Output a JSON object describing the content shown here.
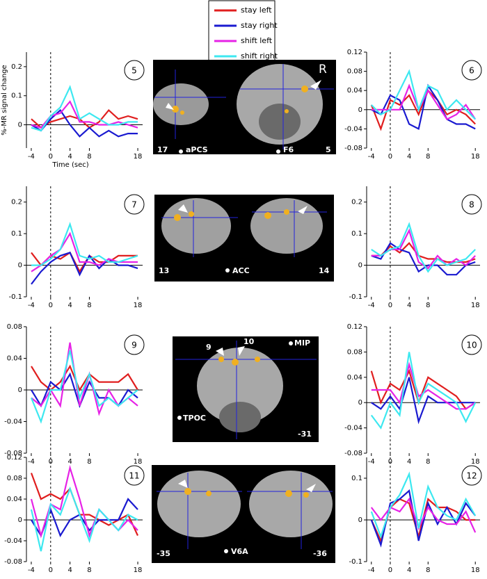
{
  "chart_data": [
    {
      "type": "line",
      "label": "5",
      "y_label": "%-MR signal change",
      "x_label": "Time (sec)",
      "x": [
        -4,
        -2,
        0,
        2,
        4,
        6,
        8,
        10,
        12,
        14,
        16,
        18
      ],
      "xlim": [
        -5,
        19
      ],
      "xticks": [
        -4,
        0,
        4,
        8,
        18
      ],
      "ylim": [
        -0.08,
        0.25
      ],
      "yticks": [
        0,
        0.1,
        0.2
      ],
      "hline": 0,
      "vline": 0,
      "series": [
        {
          "name": "stay left",
          "color": "#e01e1e",
          "values": [
            0.02,
            -0.01,
            0.01,
            0.02,
            0.03,
            0.02,
            -0.01,
            0.01,
            0.05,
            0.02,
            0.03,
            0.02
          ]
        },
        {
          "name": "stay right",
          "color": "#1a1ad0",
          "values": [
            0.0,
            -0.02,
            0.02,
            0.05,
            0.0,
            -0.04,
            -0.01,
            -0.04,
            -0.02,
            -0.04,
            -0.03,
            -0.03
          ]
        },
        {
          "name": "shift left",
          "color": "#e622e6",
          "values": [
            0.0,
            -0.01,
            0.03,
            0.04,
            0.08,
            0.01,
            0.01,
            0.0,
            0.0,
            0.01,
            0.0,
            -0.01
          ]
        },
        {
          "name": "shift right",
          "color": "#3de8f0",
          "values": [
            -0.01,
            -0.02,
            0.03,
            0.06,
            0.13,
            0.02,
            0.04,
            0.02,
            0.0,
            0.0,
            0.01,
            0.01
          ]
        }
      ]
    },
    {
      "type": "line",
      "label": "6",
      "x": [
        -4,
        -2,
        0,
        2,
        4,
        6,
        8,
        10,
        12,
        14,
        16,
        18
      ],
      "xlim": [
        -5,
        19
      ],
      "xticks": [
        -4,
        0,
        4,
        8,
        18
      ],
      "ylim": [
        -0.08,
        0.12
      ],
      "yticks": [
        -0.08,
        -0.04,
        0,
        0.04,
        0.08,
        0.12
      ],
      "hline": 0,
      "vline": 0,
      "series": [
        {
          "color": "#e01e1e",
          "values": [
            0.01,
            -0.04,
            0.02,
            0.01,
            0.03,
            -0.01,
            0.04,
            0.02,
            -0.01,
            0.0,
            -0.01,
            -0.03
          ]
        },
        {
          "color": "#1a1ad0",
          "values": [
            0.0,
            -0.01,
            0.03,
            0.02,
            -0.03,
            -0.04,
            0.05,
            0.02,
            -0.02,
            -0.03,
            -0.03,
            -0.04
          ]
        },
        {
          "color": "#e622e6",
          "values": [
            0.0,
            0.0,
            0.0,
            0.0,
            0.05,
            0.0,
            0.04,
            0.01,
            -0.02,
            -0.01,
            0.01,
            -0.02
          ]
        },
        {
          "color": "#3de8f0",
          "values": [
            0.01,
            -0.01,
            0.0,
            0.04,
            0.08,
            0.0,
            0.05,
            0.04,
            0.0,
            0.02,
            0.0,
            -0.02
          ]
        }
      ]
    },
    {
      "type": "line",
      "label": "7",
      "x": [
        -4,
        -2,
        0,
        2,
        4,
        6,
        8,
        10,
        12,
        14,
        16,
        18
      ],
      "xlim": [
        -5,
        19
      ],
      "xticks": [
        -4,
        0,
        4,
        8,
        18
      ],
      "ylim": [
        -0.1,
        0.25
      ],
      "yticks": [
        -0.1,
        0,
        0.1,
        0.2
      ],
      "hline": 0,
      "vline": 0,
      "series": [
        {
          "color": "#e01e1e",
          "values": [
            0.04,
            0.0,
            0.03,
            0.02,
            0.04,
            -0.02,
            0.03,
            0.01,
            0.01,
            0.03,
            0.03,
            0.03
          ]
        },
        {
          "color": "#1a1ad0",
          "values": [
            -0.06,
            -0.02,
            0.01,
            0.03,
            0.04,
            -0.03,
            0.03,
            -0.01,
            0.02,
            0.0,
            0.0,
            -0.01
          ]
        },
        {
          "color": "#e622e6",
          "values": [
            -0.02,
            0.0,
            0.03,
            0.05,
            0.1,
            0.01,
            0.01,
            0.0,
            0.02,
            0.01,
            0.01,
            0.01
          ]
        },
        {
          "color": "#3de8f0",
          "values": [
            0.0,
            0.0,
            0.02,
            0.05,
            0.13,
            0.03,
            0.02,
            0.03,
            0.01,
            0.01,
            0.02,
            0.03
          ]
        }
      ]
    },
    {
      "type": "line",
      "label": "8",
      "x": [
        -4,
        -2,
        0,
        2,
        4,
        6,
        8,
        10,
        12,
        14,
        16,
        18
      ],
      "xlim": [
        -5,
        19
      ],
      "xticks": [
        -4,
        0,
        4,
        8,
        18
      ],
      "ylim": [
        -0.1,
        0.25
      ],
      "yticks": [
        -0.1,
        0,
        0.1,
        0.2
      ],
      "hline": 0,
      "vline": 0,
      "series": [
        {
          "color": "#e01e1e",
          "values": [
            0.03,
            0.03,
            0.06,
            0.04,
            0.07,
            0.03,
            0.02,
            0.02,
            0.01,
            0.01,
            0.01,
            0.02
          ]
        },
        {
          "color": "#1a1ad0",
          "values": [
            0.03,
            0.02,
            0.07,
            0.05,
            0.04,
            -0.02,
            0.0,
            0.0,
            -0.03,
            -0.03,
            0.0,
            0.01
          ]
        },
        {
          "color": "#e622e6",
          "values": [
            0.03,
            0.03,
            0.05,
            0.05,
            0.11,
            0.01,
            -0.01,
            0.03,
            0.0,
            0.02,
            0.0,
            0.03
          ]
        },
        {
          "color": "#3de8f0",
          "values": [
            0.05,
            0.03,
            0.05,
            0.06,
            0.13,
            0.03,
            -0.02,
            0.02,
            0.0,
            0.01,
            0.02,
            0.05
          ]
        }
      ]
    },
    {
      "type": "line",
      "label": "9",
      "x": [
        -4,
        -2,
        0,
        2,
        4,
        6,
        8,
        10,
        12,
        14,
        16,
        18
      ],
      "xlim": [
        -5,
        19
      ],
      "xticks": [
        -4,
        0,
        4,
        8,
        18
      ],
      "ylim": [
        -0.08,
        0.08
      ],
      "yticks": [
        -0.08,
        -0.04,
        0,
        0.04,
        0.08
      ],
      "hline": 0,
      "vline": 0,
      "series": [
        {
          "color": "#e01e1e",
          "values": [
            0.03,
            0.01,
            0.0,
            0.01,
            0.03,
            0.0,
            0.02,
            0.01,
            0.01,
            0.01,
            0.02,
            0.0
          ]
        },
        {
          "color": "#1a1ad0",
          "values": [
            0.0,
            -0.02,
            0.01,
            0.0,
            0.02,
            -0.02,
            0.01,
            -0.01,
            -0.01,
            -0.02,
            0.0,
            -0.01
          ]
        },
        {
          "color": "#e622e6",
          "values": [
            -0.01,
            -0.02,
            0.0,
            -0.02,
            0.06,
            -0.02,
            0.02,
            -0.03,
            0.0,
            -0.02,
            -0.01,
            -0.02
          ]
        },
        {
          "color": "#3de8f0",
          "values": [
            -0.01,
            -0.04,
            0.0,
            0.0,
            0.05,
            -0.01,
            0.02,
            -0.02,
            -0.01,
            -0.02,
            -0.01,
            0.0
          ]
        }
      ]
    },
    {
      "type": "line",
      "label": "10",
      "x": [
        -4,
        -2,
        0,
        2,
        4,
        6,
        8,
        10,
        12,
        14,
        16,
        18
      ],
      "xlim": [
        -5,
        19
      ],
      "xticks": [
        -4,
        0,
        4,
        8,
        18
      ],
      "ylim": [
        -0.08,
        0.12
      ],
      "yticks": [
        -0.08,
        -0.04,
        0,
        0.04,
        0.08,
        0.12
      ],
      "hline": 0,
      "vline": 0,
      "series": [
        {
          "color": "#e01e1e",
          "values": [
            0.05,
            0.0,
            0.03,
            0.02,
            0.05,
            0.0,
            0.04,
            0.03,
            0.02,
            0.01,
            -0.01,
            0.0
          ]
        },
        {
          "color": "#1a1ad0",
          "values": [
            0.0,
            -0.01,
            0.01,
            -0.01,
            0.04,
            -0.03,
            0.01,
            0.0,
            0.0,
            0.0,
            0.0,
            0.0
          ]
        },
        {
          "color": "#e622e6",
          "values": [
            0.02,
            0.02,
            0.02,
            0.0,
            0.06,
            0.01,
            0.02,
            0.01,
            0.0,
            -0.01,
            -0.01,
            0.0
          ]
        },
        {
          "color": "#3de8f0",
          "values": [
            -0.02,
            -0.04,
            0.0,
            -0.02,
            0.08,
            0.0,
            0.03,
            0.02,
            0.01,
            0.0,
            -0.03,
            0.0
          ]
        }
      ]
    },
    {
      "type": "line",
      "label": "11",
      "x": [
        -4,
        -2,
        0,
        2,
        4,
        6,
        8,
        10,
        12,
        14,
        16,
        18
      ],
      "xlim": [
        -5,
        19
      ],
      "xticks": [
        -4,
        0,
        4,
        8,
        18
      ],
      "ylim": [
        -0.08,
        0.12
      ],
      "yticks": [
        -0.08,
        -0.04,
        0,
        0.04,
        0.08,
        0.12
      ],
      "hline": 0,
      "vline": 0,
      "series": [
        {
          "color": "#e01e1e",
          "values": [
            0.09,
            0.04,
            0.05,
            0.04,
            0.06,
            0.01,
            0.01,
            0.0,
            -0.01,
            0.0,
            0.01,
            -0.03
          ]
        },
        {
          "color": "#1a1ad0",
          "values": [
            0.0,
            -0.03,
            0.02,
            -0.03,
            0.0,
            0.01,
            -0.02,
            0.0,
            0.0,
            0.0,
            0.04,
            0.02
          ]
        },
        {
          "color": "#e622e6",
          "values": [
            0.04,
            -0.03,
            0.03,
            0.02,
            0.1,
            0.04,
            -0.03,
            0.02,
            0.0,
            -0.02,
            0.0,
            -0.02
          ]
        },
        {
          "color": "#3de8f0",
          "values": [
            0.02,
            -0.06,
            0.03,
            0.01,
            0.06,
            0.01,
            -0.04,
            0.02,
            0.0,
            -0.02,
            0.01,
            0.0
          ]
        }
      ]
    },
    {
      "type": "line",
      "label": "12",
      "x": [
        -4,
        -2,
        0,
        2,
        4,
        6,
        8,
        10,
        12,
        14,
        16,
        18
      ],
      "xlim": [
        -5,
        19
      ],
      "xticks": [
        -4,
        0,
        4,
        8,
        18
      ],
      "ylim": [
        -0.1,
        0.15
      ],
      "yticks": [
        -0.1,
        0,
        0.1
      ],
      "hline": 0,
      "vline": 0,
      "series": [
        {
          "color": "#e01e1e",
          "values": [
            0.0,
            -0.05,
            0.03,
            0.05,
            0.04,
            -0.04,
            0.05,
            0.03,
            0.03,
            0.02,
            0.0,
            0.0
          ]
        },
        {
          "color": "#1a1ad0",
          "values": [
            0.0,
            -0.06,
            0.04,
            0.05,
            0.07,
            -0.05,
            0.04,
            -0.01,
            0.03,
            -0.01,
            0.04,
            0.01
          ]
        },
        {
          "color": "#e622e6",
          "values": [
            0.03,
            0.0,
            0.03,
            0.02,
            0.05,
            -0.02,
            0.03,
            0.0,
            -0.01,
            -0.01,
            0.02,
            -0.03
          ]
        },
        {
          "color": "#3de8f0",
          "values": [
            0.02,
            -0.04,
            0.03,
            0.06,
            0.11,
            -0.02,
            0.08,
            0.03,
            0.01,
            0.0,
            0.05,
            0.01
          ]
        }
      ]
    }
  ],
  "brain_images": [
    {
      "labels": [
        "17",
        "aPCS",
        "F6",
        "5",
        "R"
      ]
    },
    {
      "labels": [
        "13",
        "ACC",
        "14"
      ]
    },
    {
      "labels": [
        "9",
        "10",
        "MIP",
        "TPOC",
        "-31"
      ]
    },
    {
      "labels": [
        "-35",
        "V6A",
        "-36"
      ]
    }
  ]
}
